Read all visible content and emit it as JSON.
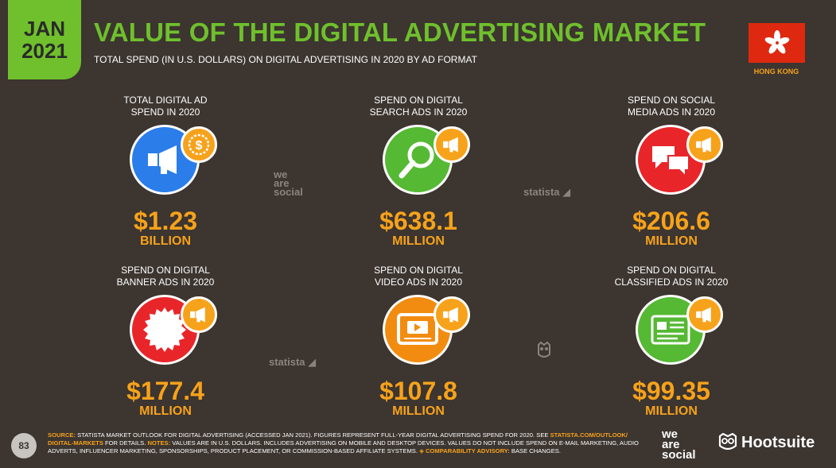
{
  "header": {
    "date_line1": "JAN",
    "date_line2": "2021",
    "title": "VALUE OF THE DIGITAL ADVERTISING MARKET",
    "subtitle": "TOTAL SPEND (IN U.S. DOLLARS) ON DIGITAL ADVERTISING IN 2020 BY AD FORMAT",
    "country": "HONG KONG"
  },
  "colors": {
    "background": "#3c3530",
    "accent_green": "#6fc02c",
    "accent_orange": "#f7a21b",
    "blue": "#2b7de9",
    "green": "#55b934",
    "red": "#e8262a",
    "orange": "#f28c10",
    "flag_red": "#de2910"
  },
  "cards": [
    {
      "label_line1": "TOTAL DIGITAL AD",
      "label_line2": "SPEND IN 2020",
      "value": "$1.23",
      "unit": "BILLION",
      "icon": "megaphone-icon",
      "badge_icon": "dollar-coin-icon",
      "color": "#2b7de9"
    },
    {
      "label_line1": "SPEND ON DIGITAL",
      "label_line2": "SEARCH ADS IN 2020",
      "value": "$638.1",
      "unit": "MILLION",
      "icon": "magnifier-icon",
      "badge_icon": "megaphone-icon",
      "color": "#55b934"
    },
    {
      "label_line1": "SPEND ON SOCIAL",
      "label_line2": "MEDIA ADS IN 2020",
      "value": "$206.6",
      "unit": "MILLION",
      "icon": "chat-bubbles-icon",
      "badge_icon": "megaphone-icon",
      "color": "#e8262a"
    },
    {
      "label_line1": "SPEND ON DIGITAL",
      "label_line2": "BANNER ADS IN 2020",
      "value": "$177.4",
      "unit": "MILLION",
      "icon": "starburst-icon",
      "badge_icon": "megaphone-icon",
      "color": "#e8262a"
    },
    {
      "label_line1": "SPEND ON DIGITAL",
      "label_line2": "VIDEO ADS IN 2020",
      "value": "$107.8",
      "unit": "MILLION",
      "icon": "video-player-icon",
      "badge_icon": "megaphone-icon",
      "color": "#f28c10"
    },
    {
      "label_line1": "SPEND ON DIGITAL",
      "label_line2": "CLASSIFIED ADS IN 2020",
      "value": "$99.35",
      "unit": "MILLION",
      "icon": "classified-card-icon",
      "badge_icon": "megaphone-icon",
      "color": "#55b934"
    }
  ],
  "watermarks": {
    "we": "we",
    "are": "are",
    "social": "social",
    "statista": "statista"
  },
  "footer": {
    "page_number": "83",
    "source_label": "SOURCE:",
    "source_text": " STATISTA MARKET OUTLOOK FOR DIGITAL ADVERTISING (ACCESSED JAN 2021). FIGURES REPRESENT FULL-YEAR DIGITAL ADVERTISING SPEND FOR 2020. SEE ",
    "source_link": "STATISTA.COM/OUTLOOK/ DIGITAL-MARKETS",
    "source_text2": " FOR DETAILS. ",
    "notes_label": "NOTES:",
    "notes_text": " VALUES ARE IN U.S. DOLLARS. INCLUDES ADVERTISING ON MOBILE AND DESKTOP DEVICES. VALUES DO NOT INCLUDE SPEND ON E-MAIL MARKETING, AUDIO ADVERTS, INFLUENCER MARKETING, SPONSORSHIPS, PRODUCT PLACEMENT, OR COMMISSION-BASED AFFILIATE SYSTEMS. ",
    "advisory_label": "◈ COMPARABILITY ADVISORY:",
    "advisory_text": " BASE CHANGES."
  },
  "logos": {
    "we": "we",
    "are": "are",
    "social": "social",
    "hootsuite": "Hootsuite"
  }
}
